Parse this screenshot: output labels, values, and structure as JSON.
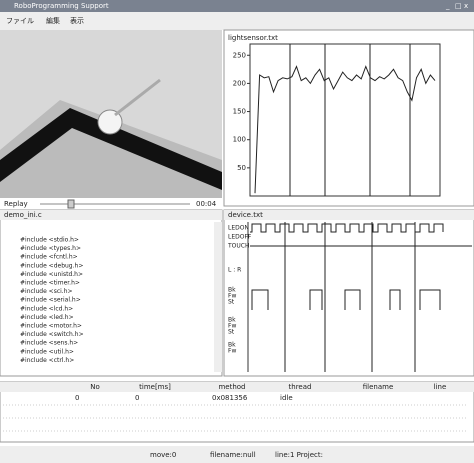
{
  "window": {
    "title": "RoboProgramming Support",
    "buttons": [
      "_",
      "□",
      "x"
    ]
  },
  "menu": [
    "ファイル",
    "編集",
    "表示"
  ],
  "replay": {
    "label": "Replay",
    "time": "00:04"
  },
  "light_panel": {
    "title": "lightsensor.txt",
    "chart": {
      "type": "line",
      "ylim": [
        0,
        270
      ],
      "yticks": [
        250,
        200,
        150,
        100,
        50
      ],
      "color": "#222",
      "values": [
        5,
        215,
        210,
        212,
        185,
        205,
        210,
        208,
        212,
        230,
        205,
        210,
        200,
        215,
        225,
        205,
        210,
        190,
        205,
        220,
        210,
        205,
        215,
        208,
        230,
        210,
        205,
        212,
        208,
        215,
        225,
        210,
        205,
        185,
        170,
        210,
        225,
        200,
        215,
        205
      ]
    }
  },
  "editor": {
    "title": "demo_ini.c",
    "lines": [
      "#include <stdio.h>",
      "#include <types.h>",
      "#include <fcntl.h>",
      "#include <debug.h>",
      "#include <unistd.h>",
      "#include <timer.h>",
      "#include <sci.h>",
      "#include <serial.h>",
      "#include <lcd.h>",
      "#include <led.h>",
      "#include <motor.h>",
      "#include <switch.h>",
      "#include <sens.h>",
      "#include <util.h>",
      "#include <ctrl.h>"
    ]
  },
  "device_panel": {
    "title": "device.txt",
    "signals": [
      "LEDON",
      "LEDOFF",
      "TOUCH",
      "L : R",
      "Bk",
      "Fw",
      "St",
      "Bk",
      "Fw",
      "St",
      "Bk",
      "Fw"
    ]
  },
  "table": {
    "headers": [
      "No",
      "time[ms]",
      "method",
      "thread",
      "filename",
      "line"
    ],
    "rows": [
      [
        "0",
        "0",
        "0x081356",
        "idle"
      ]
    ]
  },
  "status": [
    "move:0",
    "filename:null",
    "line:1 Project:"
  ]
}
